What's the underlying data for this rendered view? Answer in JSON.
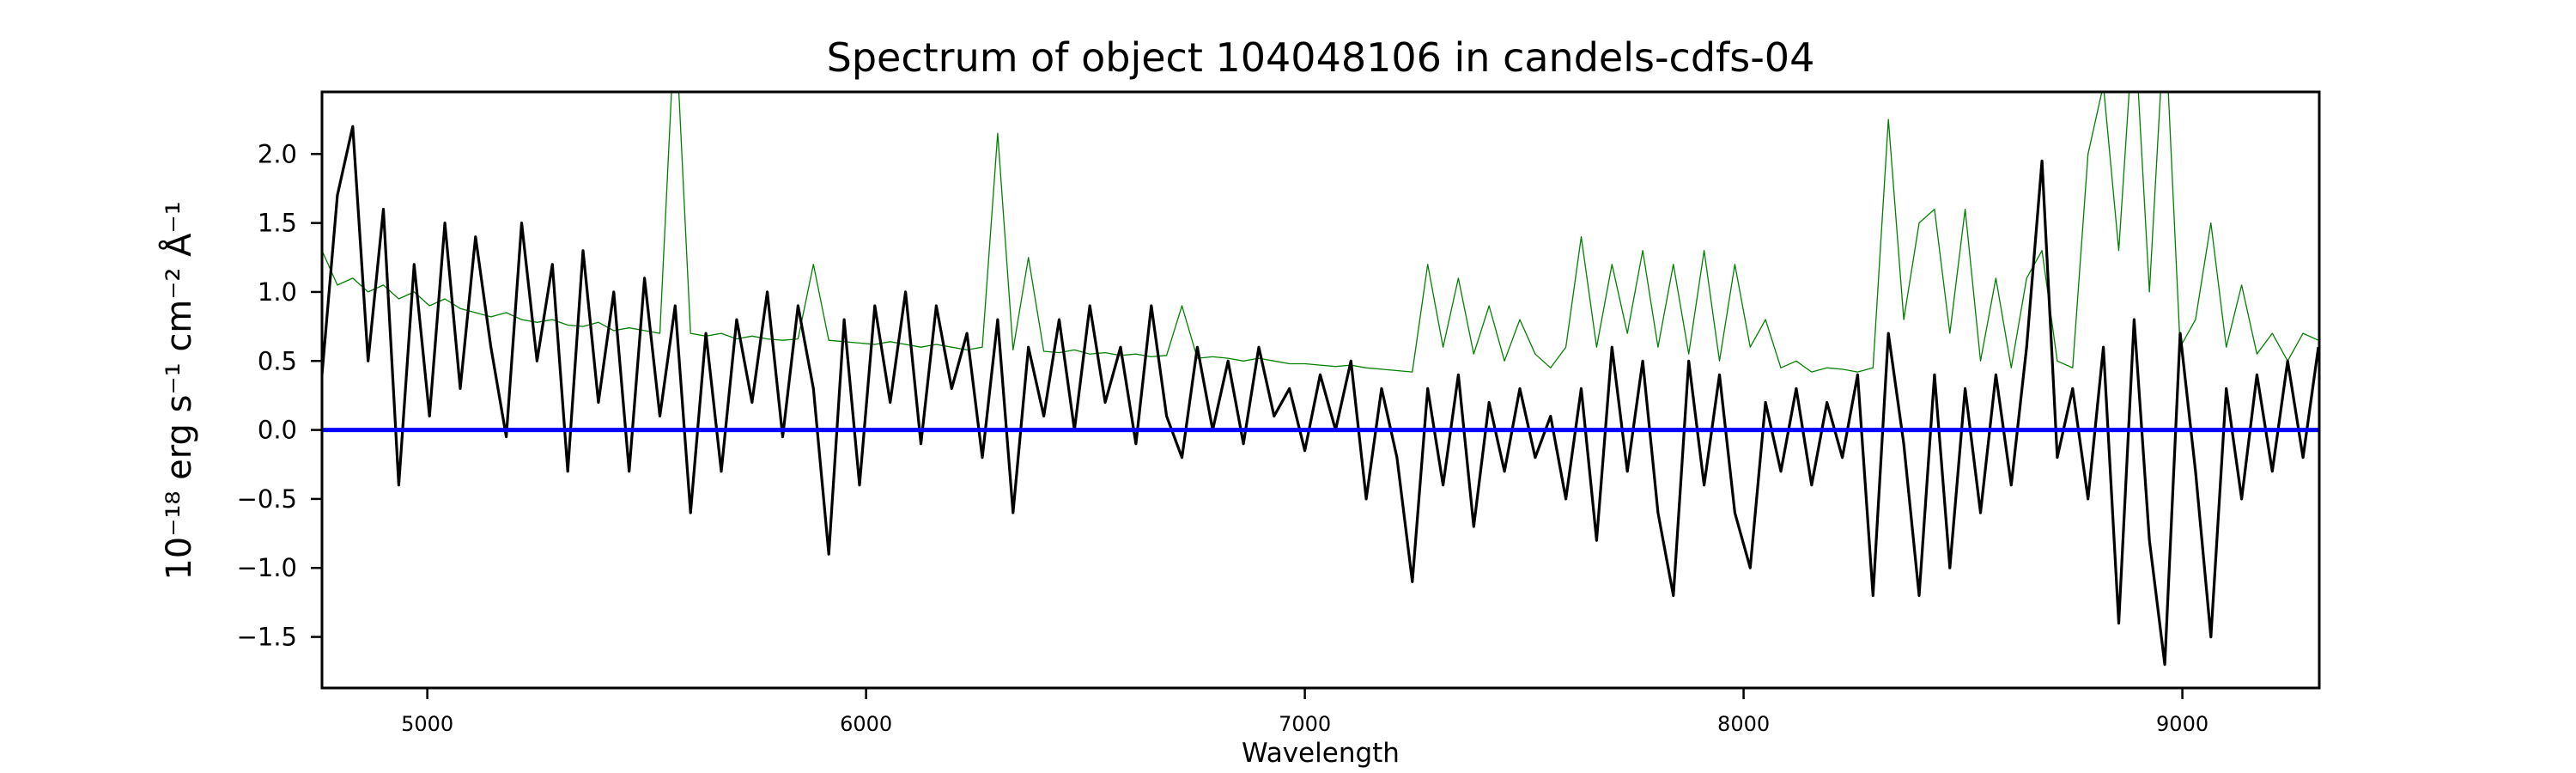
{
  "chart_data": {
    "type": "line",
    "title": "Spectrum of object 104048106 in candels-cdfs-04",
    "xlabel": "Wavelength",
    "ylabel": "10⁻¹⁸ erg s⁻¹ cm⁻² Å⁻¹",
    "xlim": [
      4760,
      9312
    ],
    "ylim": [
      -1.87,
      2.45
    ],
    "xticks": [
      5000,
      6000,
      7000,
      8000,
      9000
    ],
    "xtick_labels": [
      "5000",
      "6000",
      "7000",
      "8000",
      "9000"
    ],
    "yticks": [
      -1.5,
      -1.0,
      -0.5,
      0.0,
      0.5,
      1.0,
      1.5,
      2.0
    ],
    "ytick_labels": [
      "−1.5",
      "−1.0",
      "−0.5",
      "0.0",
      "0.5",
      "1.0",
      "1.5",
      "2.0"
    ],
    "grid": false,
    "x": [
      4760,
      4795,
      4830,
      4865,
      4900,
      4935,
      4970,
      5005,
      5040,
      5075,
      5110,
      5145,
      5180,
      5215,
      5250,
      5285,
      5320,
      5355,
      5390,
      5425,
      5460,
      5495,
      5530,
      5565,
      5600,
      5635,
      5670,
      5705,
      5740,
      5775,
      5810,
      5845,
      5880,
      5915,
      5950,
      5985,
      6020,
      6055,
      6090,
      6125,
      6160,
      6195,
      6230,
      6265,
      6300,
      6335,
      6370,
      6405,
      6440,
      6475,
      6510,
      6545,
      6580,
      6615,
      6650,
      6685,
      6720,
      6755,
      6790,
      6825,
      6860,
      6895,
      6930,
      6965,
      7000,
      7035,
      7070,
      7105,
      7140,
      7175,
      7210,
      7245,
      7280,
      7315,
      7350,
      7385,
      7420,
      7455,
      7490,
      7525,
      7560,
      7595,
      7630,
      7665,
      7700,
      7735,
      7770,
      7805,
      7840,
      7875,
      7910,
      7945,
      7980,
      8015,
      8050,
      8085,
      8120,
      8155,
      8190,
      8225,
      8260,
      8295,
      8330,
      8365,
      8400,
      8435,
      8470,
      8505,
      8540,
      8575,
      8610,
      8645,
      8680,
      8715,
      8750,
      8785,
      8820,
      8855,
      8890,
      8925,
      8960,
      8995,
      9030,
      9065,
      9100,
      9135,
      9170,
      9205,
      9240,
      9275,
      9310
    ],
    "series": [
      {
        "color": "#000000",
        "values": [
          0.4,
          1.7,
          2.2,
          0.5,
          1.6,
          -0.4,
          1.2,
          0.1,
          1.5,
          0.3,
          1.4,
          0.6,
          -0.05,
          1.5,
          0.5,
          1.2,
          -0.3,
          1.3,
          0.2,
          1.0,
          -0.3,
          1.1,
          0.1,
          0.9,
          -0.6,
          0.7,
          -0.3,
          0.8,
          0.2,
          1.0,
          -0.05,
          0.9,
          0.3,
          -0.9,
          0.8,
          -0.4,
          0.9,
          0.2,
          1.0,
          -0.1,
          0.9,
          0.3,
          0.7,
          -0.2,
          0.8,
          -0.6,
          0.6,
          0.1,
          0.8,
          0.0,
          0.9,
          0.2,
          0.6,
          -0.1,
          0.9,
          0.1,
          -0.2,
          0.6,
          0.0,
          0.5,
          -0.1,
          0.6,
          0.1,
          0.3,
          -0.15,
          0.4,
          0.0,
          0.5,
          -0.5,
          0.3,
          -0.2,
          -1.1,
          0.3,
          -0.4,
          0.4,
          -0.7,
          0.2,
          -0.3,
          0.3,
          -0.2,
          0.1,
          -0.5,
          0.3,
          -0.8,
          0.6,
          -0.3,
          0.5,
          -0.6,
          -1.2,
          0.5,
          -0.4,
          0.4,
          -0.6,
          -1.0,
          0.2,
          -0.3,
          0.3,
          -0.4,
          0.2,
          -0.2,
          0.4,
          -1.2,
          0.7,
          -0.1,
          -1.2,
          0.4,
          -1.0,
          0.3,
          -0.6,
          0.4,
          -0.4,
          0.6,
          1.95,
          -0.2,
          0.3,
          -0.5,
          0.6,
          -1.4,
          0.8,
          -0.8,
          -1.7,
          0.7,
          -0.3,
          -1.5,
          0.3,
          -0.5,
          0.4,
          -0.3,
          0.5,
          -0.2,
          0.6
        ]
      },
      {
        "color": "#008000",
        "values": [
          1.3,
          1.05,
          1.1,
          1.0,
          1.05,
          0.95,
          1.0,
          0.9,
          0.95,
          0.88,
          0.85,
          0.82,
          0.85,
          0.8,
          0.78,
          0.8,
          0.76,
          0.75,
          0.78,
          0.72,
          0.74,
          0.72,
          0.7,
          3.0,
          0.7,
          0.68,
          0.7,
          0.66,
          0.68,
          0.66,
          0.65,
          0.66,
          1.2,
          0.65,
          0.64,
          0.63,
          0.62,
          0.64,
          0.62,
          0.6,
          0.62,
          0.6,
          0.58,
          0.6,
          2.15,
          0.58,
          1.25,
          0.57,
          0.56,
          0.58,
          0.55,
          0.56,
          0.54,
          0.55,
          0.53,
          0.54,
          0.9,
          0.52,
          0.53,
          0.52,
          0.5,
          0.52,
          0.5,
          0.48,
          0.48,
          0.47,
          0.46,
          0.47,
          0.45,
          0.44,
          0.43,
          0.42,
          1.2,
          0.6,
          1.1,
          0.55,
          0.9,
          0.5,
          0.8,
          0.55,
          0.45,
          0.6,
          1.4,
          0.6,
          1.2,
          0.7,
          1.3,
          0.6,
          1.2,
          0.55,
          1.3,
          0.5,
          1.2,
          0.6,
          0.8,
          0.45,
          0.5,
          0.42,
          0.45,
          0.44,
          0.42,
          0.45,
          2.25,
          0.8,
          1.5,
          1.6,
          0.7,
          1.6,
          0.5,
          1.1,
          0.45,
          1.1,
          1.3,
          0.5,
          0.45,
          2.0,
          2.5,
          1.3,
          3.0,
          1.0,
          3.0,
          0.6,
          0.8,
          1.5,
          0.6,
          1.05,
          0.55,
          0.7,
          0.5,
          0.7,
          0.65
        ]
      }
    ],
    "hlines": [
      {
        "y": 0.0,
        "color": "#0000ff"
      }
    ]
  }
}
